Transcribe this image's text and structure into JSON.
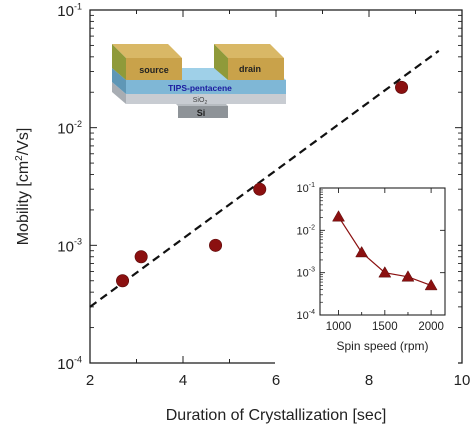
{
  "chart_data": [
    {
      "type": "scatter",
      "title": "",
      "xlabel": "Duration of Crystallization [sec]",
      "ylabel": "Mobility [cm²/Vs]",
      "ylabel_parts": {
        "main": "Mobility [cm",
        "sup": "2",
        "tail": "/Vs]"
      },
      "xlim": [
        2,
        10
      ],
      "ylim": [
        0.0001,
        0.1
      ],
      "yscale": "log",
      "x_ticks": [
        2,
        4,
        6,
        8,
        10
      ],
      "y_ticks": [
        {
          "base": "10",
          "exp": "-4"
        },
        {
          "base": "10",
          "exp": "-3"
        },
        {
          "base": "10",
          "exp": "-2"
        },
        {
          "base": "10",
          "exp": "-1"
        }
      ],
      "grid": false,
      "colors": {
        "marker": "#8b1010",
        "fit": "#111111"
      },
      "series": [
        {
          "x": [
            2.7,
            3.1,
            4.7,
            5.65,
            8.7
          ],
          "y": [
            0.0005,
            0.0008,
            0.001,
            0.003,
            0.022
          ],
          "marker": "circle"
        }
      ],
      "fit_line": {
        "style": "dashed",
        "x": [
          2.0,
          9.5
        ],
        "y": [
          0.0003,
          0.045
        ]
      }
    },
    {
      "type": "line",
      "title": "",
      "xlabel": "Spin speed (rpm)",
      "ylabel": "",
      "xlim": [
        800,
        2150
      ],
      "ylim": [
        0.0001,
        0.1
      ],
      "yscale": "log",
      "x_ticks": [
        1000,
        1500,
        2000
      ],
      "y_ticks": [
        {
          "base": "10",
          "exp": "-4"
        },
        {
          "base": "10",
          "exp": "-3"
        },
        {
          "base": "10",
          "exp": "-2"
        },
        {
          "base": "10",
          "exp": "-1"
        }
      ],
      "grid": false,
      "series": [
        {
          "x": [
            1000,
            1250,
            1500,
            1750,
            2000
          ],
          "y": [
            0.021,
            0.003,
            0.001,
            0.0008,
            0.0005
          ],
          "marker": "triangle",
          "color": "#8b1010"
        }
      ]
    }
  ],
  "device_schematic": {
    "labels": {
      "source": "source",
      "drain": "drain",
      "semiconductor": "TIPS-pentacene",
      "dielectric": "SiO",
      "dielectric_sub": "2",
      "gate": "Si"
    },
    "colors": {
      "electrode": "#c9a24a",
      "electrode_side": "#8f9a3a",
      "semiconductor": "#7fb7d6",
      "semiconductor_text": "#1a1aa0",
      "dielectric": "#c8ccd2",
      "gate": "#9ea3a8"
    }
  }
}
